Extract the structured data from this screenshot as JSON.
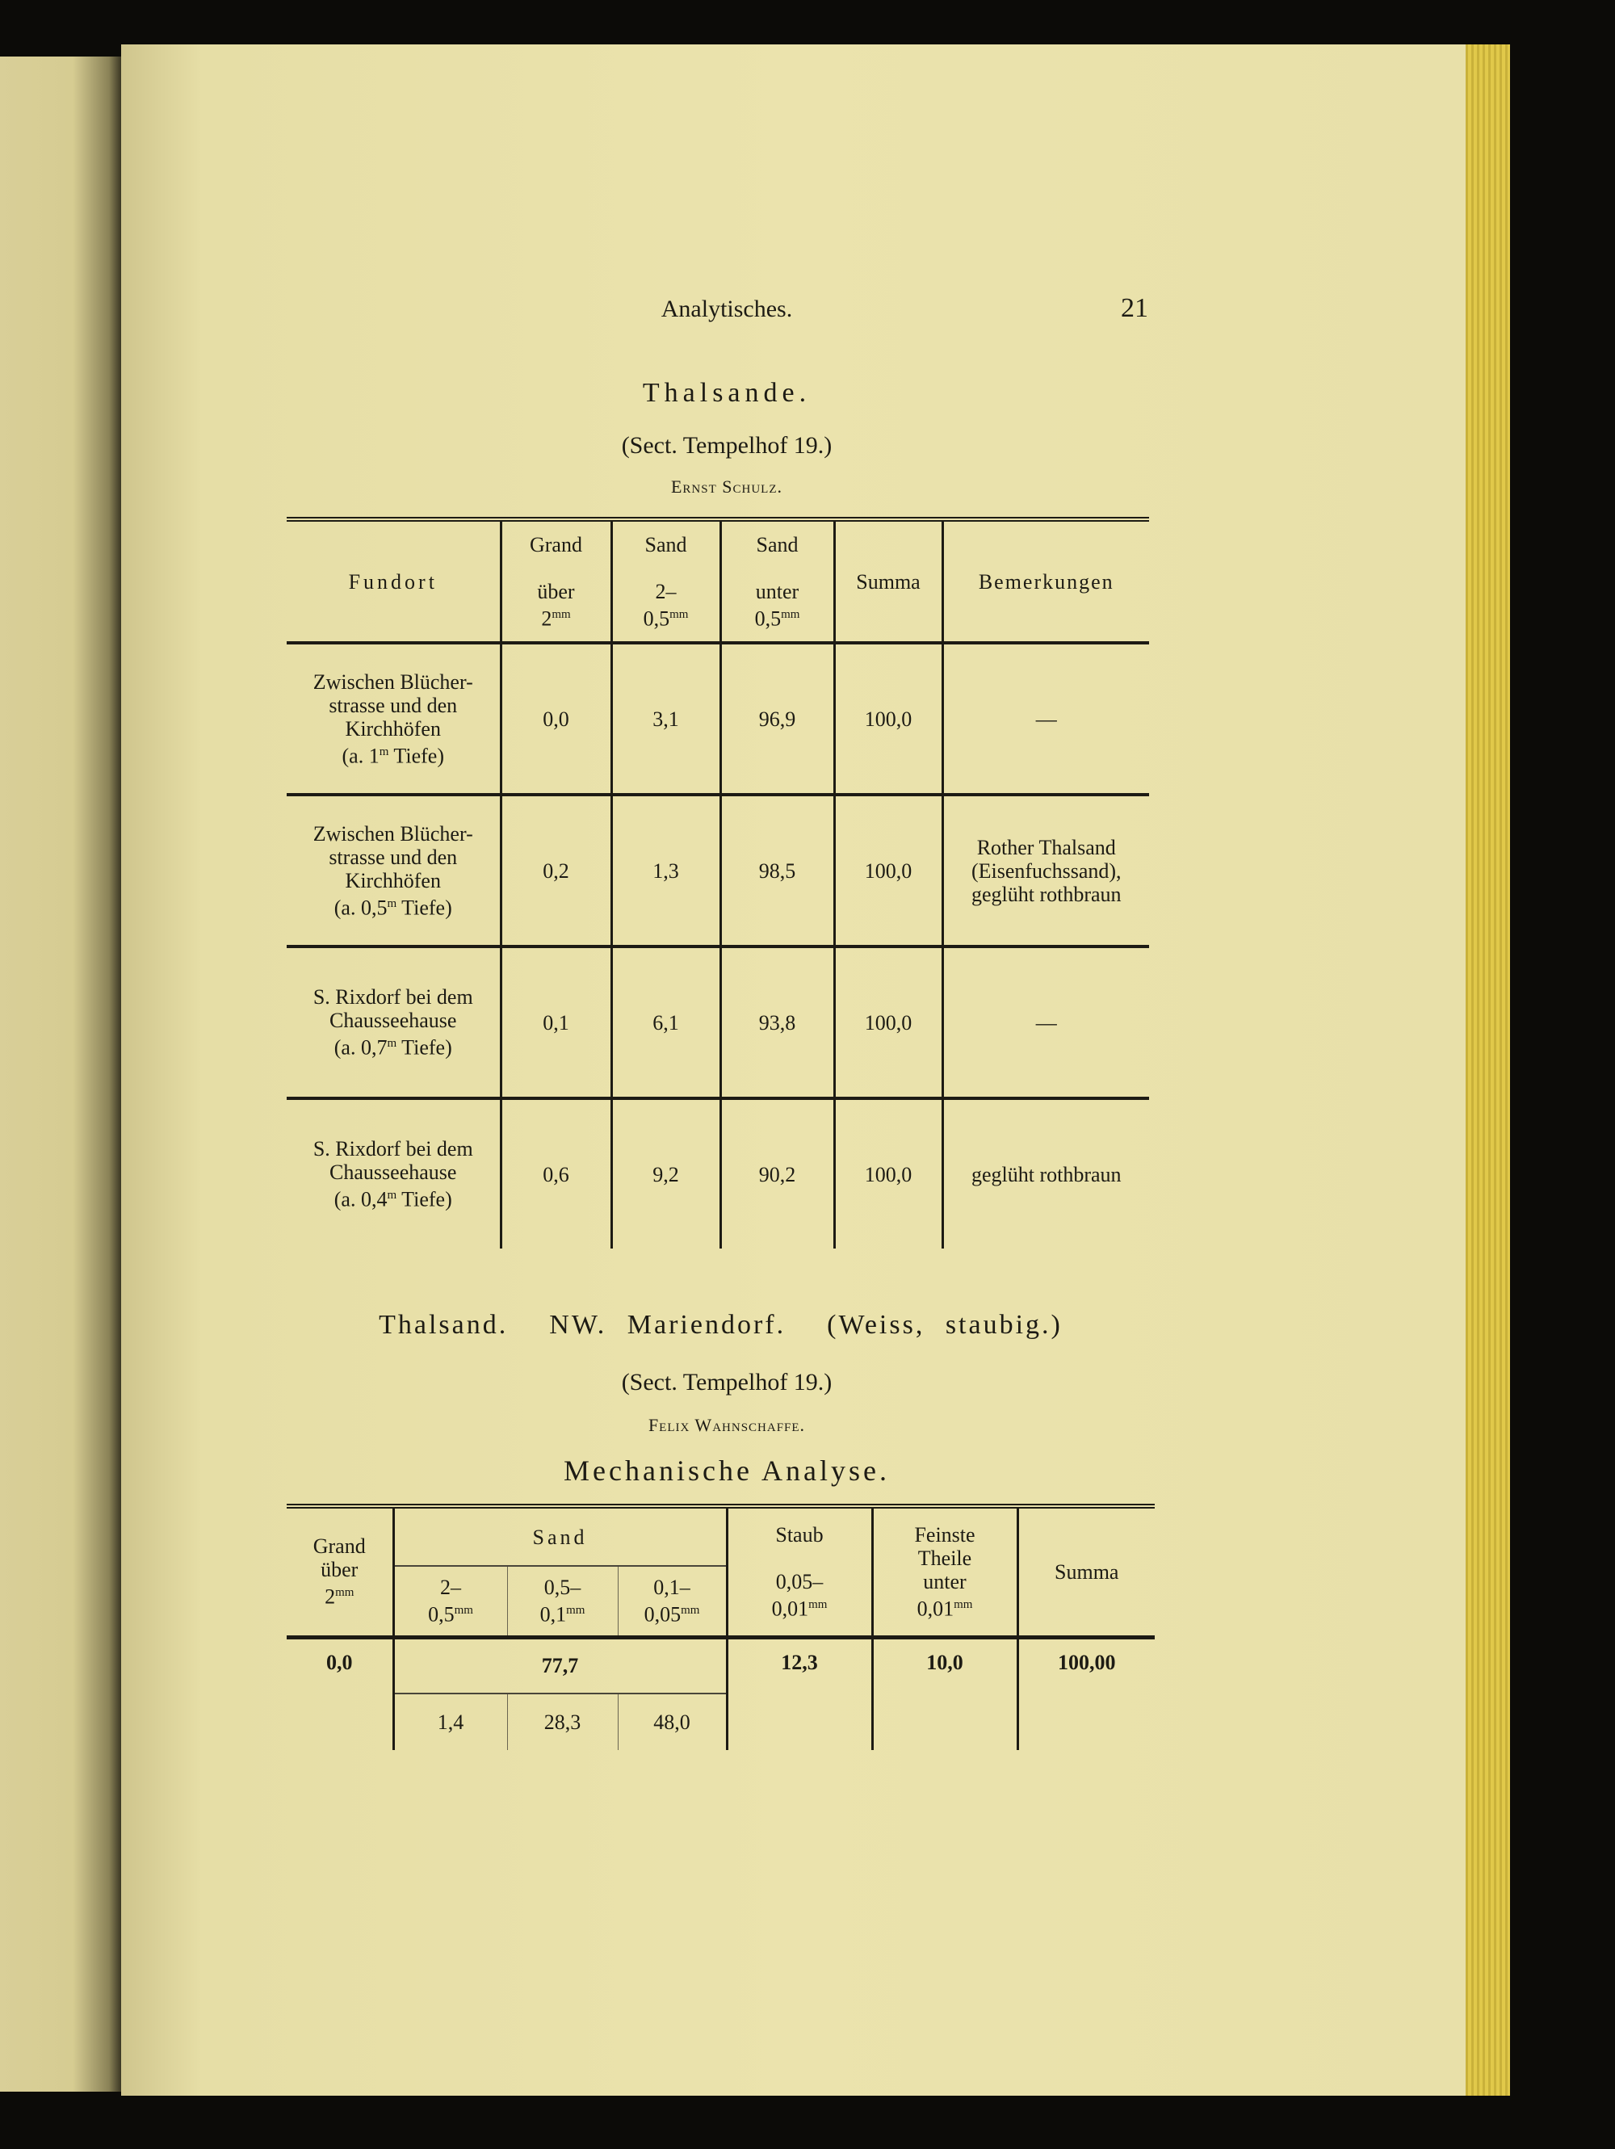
{
  "running_header": {
    "title": "Analytisches.",
    "page_number": "21"
  },
  "section1": {
    "title": "Thalsande.",
    "sect": "(Sect. Tempelhof 19.)",
    "author": "Ernst Schulz.",
    "table": {
      "headers": {
        "fundort": "Fundort",
        "grand": {
          "top": "Grand",
          "bottom": "über",
          "size": "2",
          "unit": "mm"
        },
        "sand1": {
          "top": "Sand",
          "bottom": "2–",
          "size": "0,5",
          "unit": "mm"
        },
        "sand2": {
          "top": "Sand",
          "bottom": "unter",
          "size": "0,5",
          "unit": "mm"
        },
        "summa": "Summa",
        "bemerkungen": "Bemerkungen"
      },
      "rows": [
        {
          "fundort": [
            "Zwischen Blücher-",
            "strasse und den",
            "Kirchhöfen",
            "(a. 1",
            "m",
            " Tiefe)"
          ],
          "grand": "0,0",
          "sand1": "3,1",
          "sand2": "96,9",
          "summa": "100,0",
          "bemerkungen": [
            "—"
          ]
        },
        {
          "fundort": [
            "Zwischen Blücher-",
            "strasse und den",
            "Kirchhöfen",
            "(a. 0,5",
            "m",
            " Tiefe)"
          ],
          "grand": "0,2",
          "sand1": "1,3",
          "sand2": "98,5",
          "summa": "100,0",
          "bemerkungen": [
            "Rother Thalsand",
            "(Eisenfuchssand),",
            "geglüht rothbraun"
          ]
        },
        {
          "fundort": [
            "S. Rixdorf bei dem",
            "Chausseehause",
            "",
            "(a. 0,7",
            "m",
            " Tiefe)"
          ],
          "grand": "0,1",
          "sand1": "6,1",
          "sand2": "93,8",
          "summa": "100,0",
          "bemerkungen": [
            "—"
          ]
        },
        {
          "fundort": [
            "S. Rixdorf bei dem",
            "Chausseehause",
            "",
            "(a. 0,4",
            "m",
            " Tiefe)"
          ],
          "grand": "0,6",
          "sand1": "9,2",
          "sand2": "90,2",
          "summa": "100,0",
          "bemerkungen": [
            "geglüht rothbraun"
          ]
        }
      ]
    }
  },
  "section2": {
    "title_parts": [
      "Thalsand.",
      "NW. Mariendorf.",
      "(Weiss, staubig.)"
    ],
    "sect": "(Sect. Tempelhof 19.)",
    "author": "Felix Wahnschaffe.",
    "subtitle": "Mechanische Analyse.",
    "table": {
      "headers": {
        "grand": [
          "Grand",
          "über",
          "2",
          "mm"
        ],
        "sand": "Sand",
        "sand_sub": [
          [
            "2–",
            "0,5",
            "mm"
          ],
          [
            "0,5–",
            "0,1",
            "mm"
          ],
          [
            "0,1–",
            "0,05",
            "mm"
          ]
        ],
        "staub": [
          "Staub",
          "0,05–",
          "0,01",
          "mm"
        ],
        "feinste": [
          "Feinste",
          "Theile",
          "unter",
          "0,01",
          "mm"
        ],
        "summa": "Summa"
      },
      "values": {
        "grand": "0,0",
        "sand_total": "77,7",
        "sand_sub": [
          "1,4",
          "28,3",
          "48,0"
        ],
        "staub": "12,3",
        "feinste": "10,0",
        "summa": "100,00"
      }
    }
  }
}
